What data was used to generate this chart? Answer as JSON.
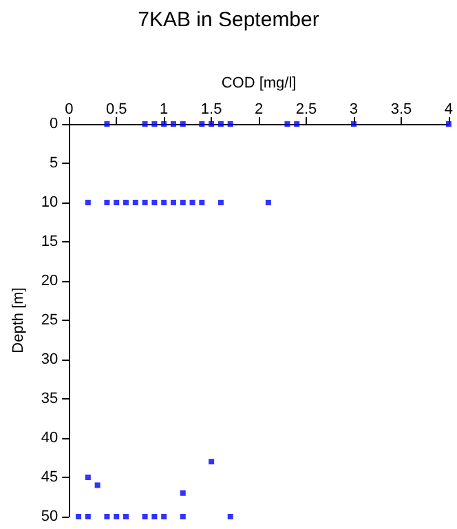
{
  "chart_data": {
    "type": "scatter",
    "title": "7KAB in September",
    "xlabel": "COD [mg/l]",
    "ylabel": "Depth [m]",
    "xlim": [
      0,
      4
    ],
    "xticks": [
      0,
      0.5,
      1,
      1.5,
      2,
      2.5,
      3,
      3.5,
      4
    ],
    "ylim": [
      50,
      0
    ],
    "yticks": [
      0,
      5,
      10,
      15,
      20,
      25,
      30,
      35,
      40,
      45,
      50
    ],
    "grid": false,
    "marker": "square",
    "series": [
      {
        "color": "#0000ff",
        "x": [
          0.4,
          0.8,
          0.9,
          1.0,
          1.1,
          1.2,
          1.4,
          1.5,
          1.6,
          1.7,
          2.3,
          2.4,
          3.0,
          4.0,
          0.2,
          0.4,
          0.5,
          0.6,
          0.7,
          0.8,
          0.9,
          1.0,
          1.1,
          1.2,
          1.3,
          1.4,
          1.6,
          2.1,
          0.2,
          0.3,
          1.2,
          1.5,
          0.1,
          0.2,
          0.4,
          0.5,
          0.6,
          0.8,
          0.9,
          1.0,
          1.2,
          1.7
        ],
        "values": [
          0,
          0,
          0,
          0,
          0,
          0,
          0,
          0,
          0,
          0,
          0,
          0,
          0,
          0,
          10,
          10,
          10,
          10,
          10,
          10,
          10,
          10,
          10,
          10,
          10,
          10,
          10,
          10,
          45,
          46,
          47,
          43,
          50,
          50,
          50,
          50,
          50,
          50,
          50,
          50,
          50,
          50
        ]
      }
    ]
  }
}
